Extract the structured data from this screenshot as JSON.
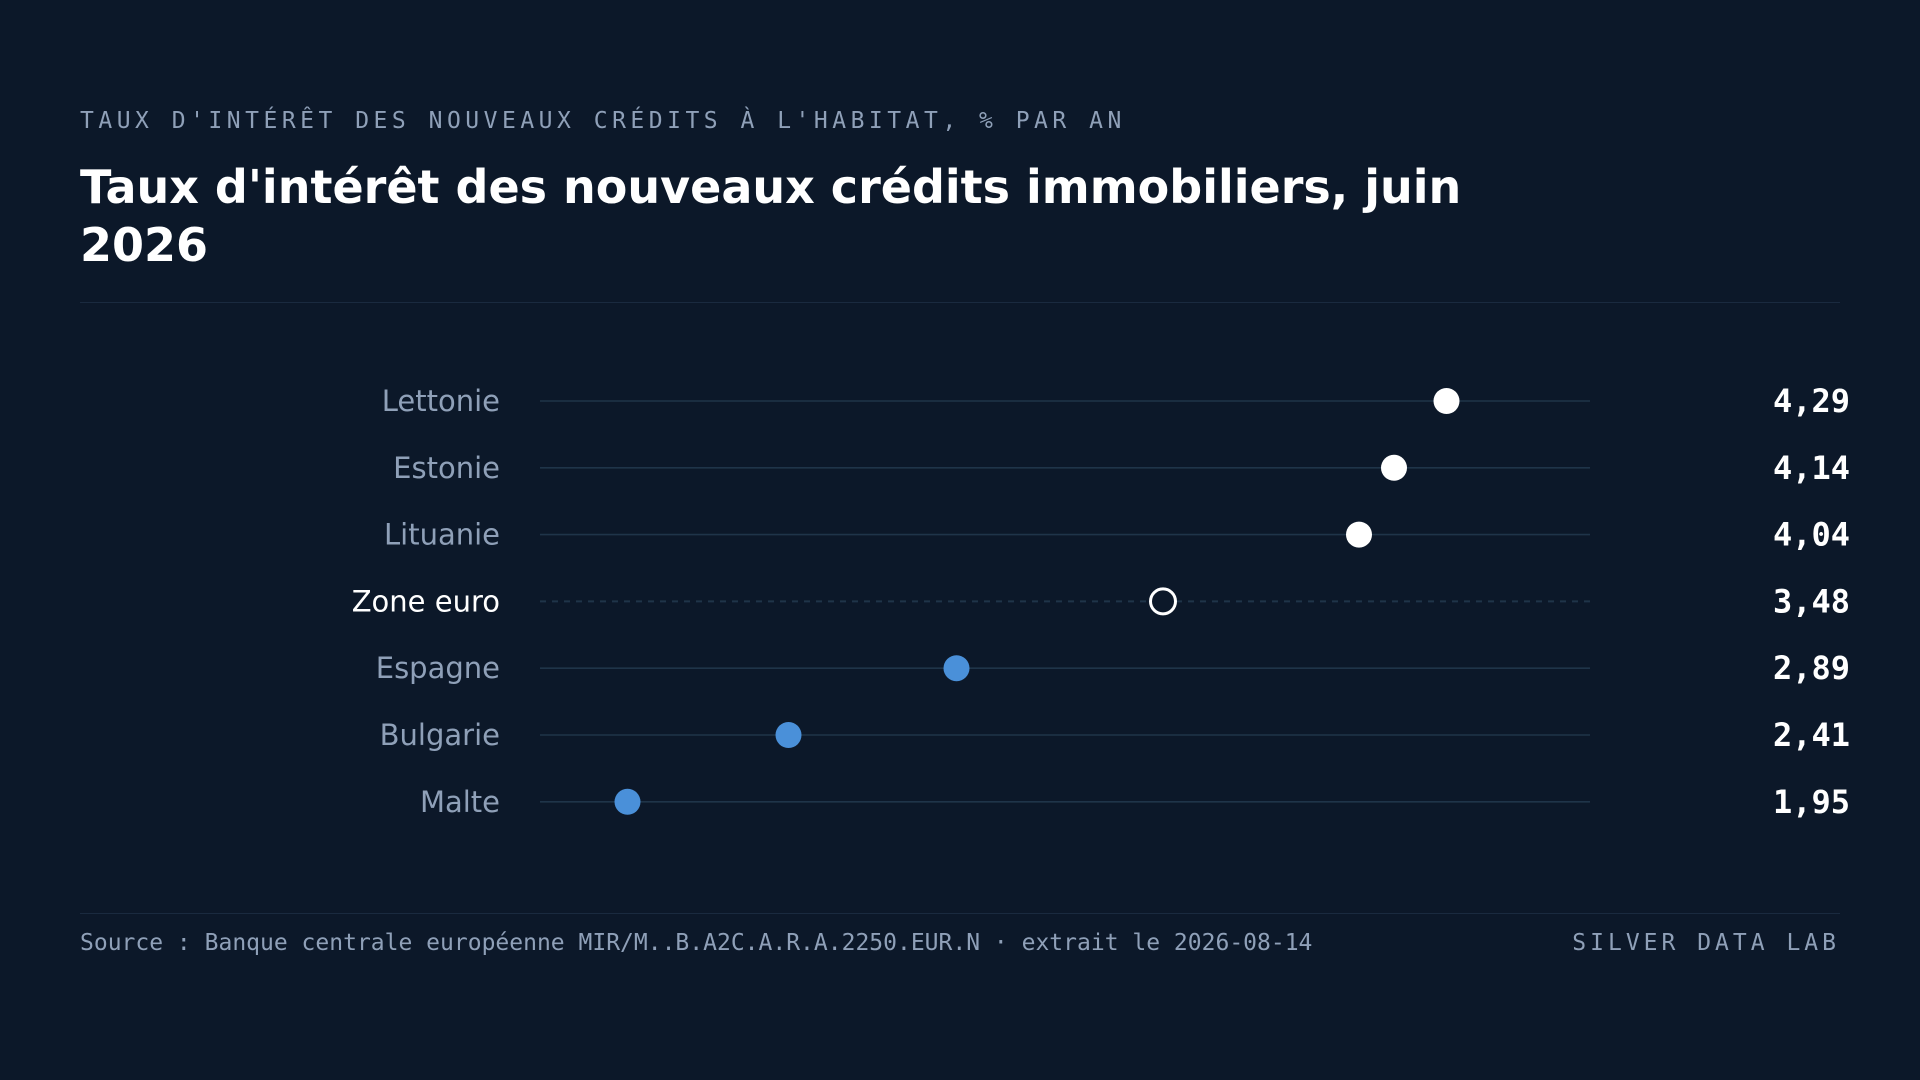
{
  "header": {
    "kicker": "TAUX D'INTÉRÊT DES NOUVEAUX CRÉDITS À L'HABITAT, % PAR AN",
    "title": "Taux d'intérêt des nouveaux crédits immobiliers, juin 2026"
  },
  "footer": {
    "source": "Source : Banque centrale européenne MIR/M..B.A2C.A.R.A.2250.EUR.N · extrait le 2026-08-14",
    "brand": "SILVER DATA LAB"
  },
  "colors": {
    "background": "#0c1829",
    "high": "#ffffff",
    "low": "#4a90d9",
    "reference": "#ffffff",
    "track": "#1f3449",
    "muted_text": "#8fa0b8"
  },
  "chart_data": {
    "type": "scatter",
    "title": "Taux d'intérêt des nouveaux crédits immobiliers, juin 2026",
    "subtitle": "TAUX D'INTÉRÊT DES NOUVEAUX CRÉDITS À L'HABITAT, % PAR AN",
    "xlabel": "",
    "ylabel": "",
    "xlim": [
      1.7,
      4.7
    ],
    "grid": false,
    "legend": "none",
    "reference": "Zone euro",
    "categories": [
      "Lettonie",
      "Estonie",
      "Lituanie",
      "Zone euro",
      "Espagne",
      "Bulgarie",
      "Malte"
    ],
    "values": [
      4.29,
      4.14,
      4.04,
      3.48,
      2.89,
      2.41,
      1.95
    ],
    "value_labels": [
      "4,29",
      "4,14",
      "4,04",
      "3,48",
      "2,89",
      "2,41",
      "1,95"
    ]
  }
}
